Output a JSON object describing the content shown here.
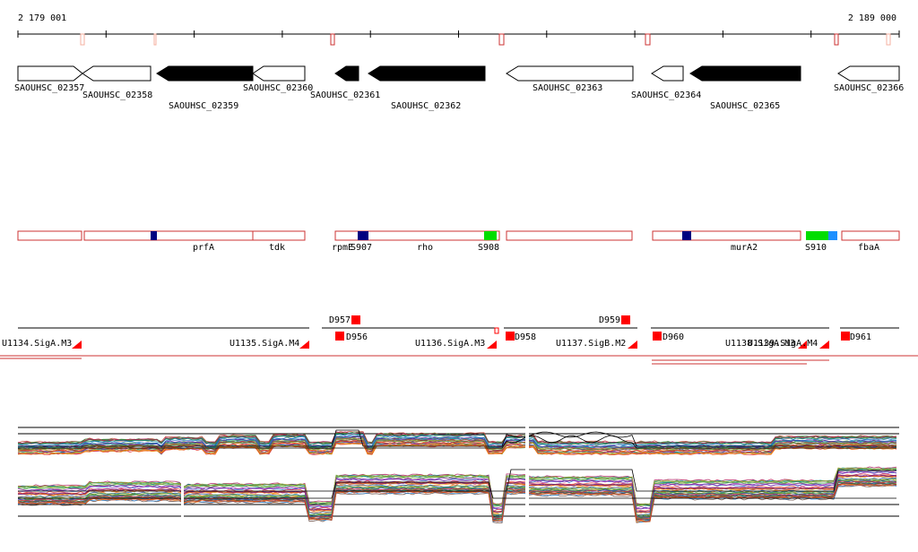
{
  "coord": {
    "start": "2 179 001",
    "end": "2 189 000"
  },
  "colors": {
    "track": "#cc3333",
    "operon_bar": "#cc3333",
    "navy": "#000080",
    "green": "#00dd00",
    "cyan": "#1e90ff",
    "red": "#ff0000"
  },
  "genes": [
    {
      "label": "SAOUHSC_02357",
      "strand": "+",
      "filled": false
    },
    {
      "label": "SAOUHSC_02358",
      "strand": "-",
      "filled": false
    },
    {
      "label": "SAOUHSC_02359",
      "strand": "-",
      "filled": true
    },
    {
      "label": "SAOUHSC_02360",
      "strand": "-",
      "filled": false
    },
    {
      "label": "SAOUHSC_02361",
      "strand": "-",
      "filled": true
    },
    {
      "label": "SAOUHSC_02362",
      "strand": "-",
      "filled": true
    },
    {
      "label": "SAOUHSC_02363",
      "strand": "-",
      "filled": false
    },
    {
      "label": "SAOUHSC_02364",
      "strand": "-",
      "filled": false
    },
    {
      "label": "SAOUHSC_02365",
      "strand": "-",
      "filled": true
    },
    {
      "label": "SAOUHSC_02366",
      "strand": "-",
      "filled": false
    }
  ],
  "annotations": [
    {
      "label": "prfA"
    },
    {
      "label": "tdk"
    },
    {
      "label": "rpmE"
    },
    {
      "label": "S907"
    },
    {
      "label": "rho"
    },
    {
      "label": "S908"
    },
    {
      "label": "murA2"
    },
    {
      "label": "S910"
    },
    {
      "label": "fbaA"
    }
  ],
  "features": [
    {
      "label": "D957"
    },
    {
      "label": "D959"
    },
    {
      "label": "U1134.SigA.M3"
    },
    {
      "label": "U1135.SigA.M4"
    },
    {
      "label": "D956"
    },
    {
      "label": "U1136.SigA.M3"
    },
    {
      "label": "D958"
    },
    {
      "label": "U1137.SigB.M2"
    },
    {
      "label": "D960"
    },
    {
      "label": "U1138.SigA.M3"
    },
    {
      "label": "U1139.SigA.M4"
    },
    {
      "label": "D961"
    }
  ]
}
